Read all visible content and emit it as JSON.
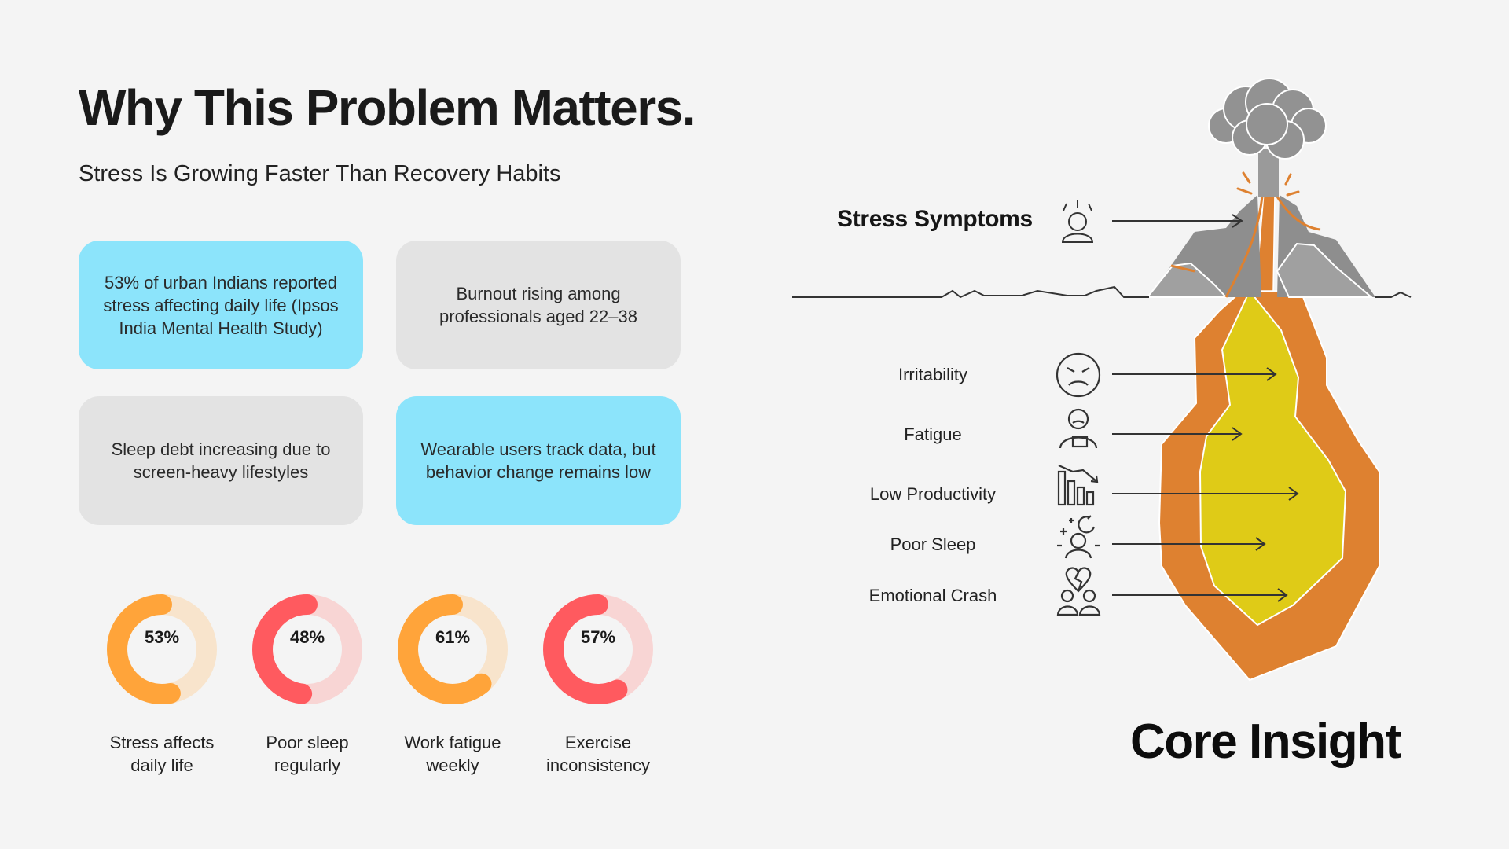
{
  "title": "Why This Problem Matters.",
  "subtitle": "Stress Is Growing Faster Than Recovery Habits",
  "cards": [
    {
      "text": "53% of urban Indians reported stress affecting daily life (Ipsos India Mental Health Study)",
      "color": "#8ce4fb"
    },
    {
      "text": "Burnout rising among professionals aged 22–38",
      "color": "#e3e3e3"
    },
    {
      "text": "Sleep debt increasing due to screen-heavy lifestyles",
      "color": "#e3e3e3"
    },
    {
      "text": "Wearable users track data, but behavior change remains low",
      "color": "#8ce4fb"
    }
  ],
  "stats": [
    {
      "value": 53,
      "label": "53%",
      "caption": "Stress affects daily life",
      "color": "#ffa43a",
      "track": "#f8e4cc"
    },
    {
      "value": 48,
      "label": "48%",
      "caption": "Poor sleep regularly",
      "color": "#ff5a5f",
      "track": "#f8d5d4"
    },
    {
      "value": 61,
      "label": "61%",
      "caption": "Work fatigue weekly",
      "color": "#ffa43a",
      "track": "#f8e4cc"
    },
    {
      "value": 57,
      "label": "57%",
      "caption": "Exercise inconsistency",
      "color": "#ff5a5f",
      "track": "#f8d5d4"
    }
  ],
  "illustration": {
    "heading": "Stress Symptoms",
    "symptoms": [
      {
        "label": "Irritability",
        "icon": "angry-face-icon"
      },
      {
        "label": "Fatigue",
        "icon": "tired-person-icon"
      },
      {
        "label": "Low Productivity",
        "icon": "declining-chart-icon"
      },
      {
        "label": "Poor Sleep",
        "icon": "sleepless-person-icon"
      },
      {
        "label": "Emotional Crash",
        "icon": "broken-heart-icon"
      }
    ],
    "colors": {
      "magma_outer": "#de8130",
      "magma_inner": "#dfcb17",
      "rock": "#8e8e8e",
      "smoke": "#929292"
    }
  },
  "core_insight": "Core Insight"
}
